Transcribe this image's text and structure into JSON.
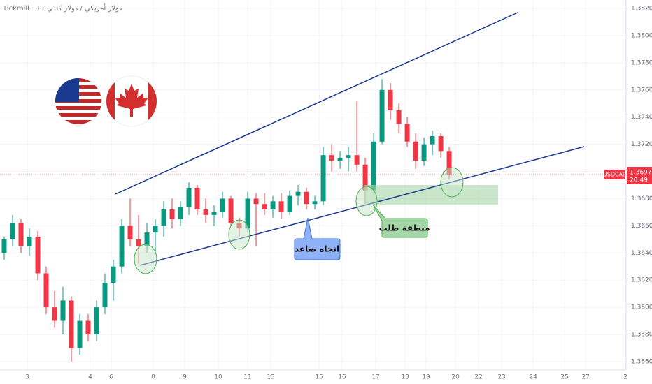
{
  "header": "Tickmill · 1 · دولار أمريكي / دولار كندي",
  "symbol": "USDCAD",
  "countdown": "20:49",
  "annotations": {
    "trend": "اتجاه صاعد",
    "demand_zone": "منطقة طلب"
  },
  "chart_data": {
    "type": "candlestick",
    "up_color": "#089981",
    "down_color": "#f23645",
    "grid": true,
    "xlim": [
      0,
      298.3
    ],
    "ylim": [
      1.35538,
      1.38262
    ],
    "xticks": [
      {
        "value": 13,
        "label": "3"
      },
      {
        "value": 43,
        "label": "4"
      },
      {
        "value": 53,
        "label": "6"
      },
      {
        "value": 73,
        "label": "8"
      },
      {
        "value": 88,
        "label": "9"
      },
      {
        "value": 104,
        "label": "10"
      },
      {
        "value": 118,
        "label": "11"
      },
      {
        "value": 129,
        "label": "13"
      },
      {
        "value": 152,
        "label": "15"
      },
      {
        "value": 163,
        "label": "16"
      },
      {
        "value": 179,
        "label": "17"
      },
      {
        "value": 193,
        "label": "18"
      },
      {
        "value": 203,
        "label": "19"
      },
      {
        "value": 217,
        "label": "20"
      },
      {
        "value": 228,
        "label": "22"
      },
      {
        "value": 239,
        "label": "23"
      },
      {
        "value": 254,
        "label": "24"
      },
      {
        "value": 269,
        "label": "25"
      },
      {
        "value": 279,
        "label": "27"
      },
      {
        "value": 298,
        "label": "2"
      }
    ],
    "yticks": [
      {
        "value": 1.356,
        "label": "1.35600"
      },
      {
        "value": 1.358,
        "label": "1.35800"
      },
      {
        "value": 1.36,
        "label": "1.36000"
      },
      {
        "value": 1.362,
        "label": "1.36200"
      },
      {
        "value": 1.364,
        "label": "1.36400"
      },
      {
        "value": 1.366,
        "label": "1.36600"
      },
      {
        "value": 1.368,
        "label": "1.36800"
      },
      {
        "value": 1.37,
        "label": "1.37000"
      },
      {
        "value": 1.372,
        "label": "1.37200"
      },
      {
        "value": 1.374,
        "label": "1.37400"
      },
      {
        "value": 1.376,
        "label": "1.37600"
      },
      {
        "value": 1.378,
        "label": "1.37800"
      },
      {
        "value": 1.38,
        "label": "1.38000"
      },
      {
        "value": 1.382,
        "label": "1.38200"
      }
    ],
    "x": [
      2,
      6,
      10,
      14,
      18,
      22,
      26,
      30,
      34,
      38,
      42,
      46,
      50,
      54,
      58,
      62,
      66,
      70,
      74,
      78,
      82,
      86,
      90,
      94,
      98,
      102,
      106,
      110,
      114,
      118,
      122,
      126,
      130,
      134,
      138,
      142,
      146,
      150,
      154,
      158,
      162,
      166,
      170,
      174,
      178,
      182,
      186,
      190,
      194,
      198,
      202,
      206,
      210,
      214
    ],
    "open": [
      1.364,
      1.365,
      1.3662,
      1.3645,
      1.3652,
      1.3625,
      1.36,
      1.359,
      1.3605,
      1.357,
      1.359,
      1.358,
      1.36,
      1.3618,
      1.363,
      1.366,
      1.365,
      1.3645,
      1.3655,
      1.366,
      1.3672,
      1.3665,
      1.3674,
      1.3688,
      1.3672,
      1.3668,
      1.367,
      1.368,
      1.3662,
      1.3658,
      1.368,
      1.3676,
      1.3672,
      1.3678,
      1.367,
      1.3682,
      1.3685,
      1.3676,
      1.3678,
      1.3712,
      1.3708,
      1.371,
      1.3712,
      1.3705,
      1.3686,
      1.3722,
      1.376,
      1.3745,
      1.3735,
      1.3722,
      1.3708,
      1.372,
      1.3726,
      1.3715
    ],
    "high": [
      1.3652,
      1.3668,
      1.3665,
      1.3658,
      1.3656,
      1.363,
      1.3612,
      1.3615,
      1.3608,
      1.3595,
      1.3595,
      1.3605,
      1.3625,
      1.3635,
      1.3665,
      1.368,
      1.3668,
      1.3662,
      1.3665,
      1.3678,
      1.368,
      1.3678,
      1.3692,
      1.369,
      1.368,
      1.3675,
      1.3685,
      1.3682,
      1.3666,
      1.3685,
      1.3684,
      1.3684,
      1.3682,
      1.3684,
      1.3686,
      1.369,
      1.3688,
      1.3682,
      1.3718,
      1.372,
      1.3715,
      1.3718,
      1.3752,
      1.371,
      1.3728,
      1.3768,
      1.3765,
      1.375,
      1.374,
      1.3728,
      1.3725,
      1.373,
      1.3728,
      1.3718
    ],
    "low": [
      1.3635,
      1.3645,
      1.364,
      1.3638,
      1.362,
      1.3595,
      1.3585,
      1.358,
      1.356,
      1.3565,
      1.3575,
      1.3575,
      1.3595,
      1.3605,
      1.3625,
      1.3645,
      1.3632,
      1.364,
      1.364,
      1.3652,
      1.3658,
      1.366,
      1.3668,
      1.3668,
      1.3662,
      1.366,
      1.3666,
      1.366,
      1.3652,
      1.3655,
      1.3645,
      1.3668,
      1.3666,
      1.3665,
      1.3668,
      1.3675,
      1.3672,
      1.3672,
      1.3675,
      1.37,
      1.3702,
      1.37,
      1.37,
      1.3676,
      1.3684,
      1.372,
      1.3738,
      1.3728,
      1.3718,
      1.3702,
      1.3704,
      1.3712,
      1.371,
      1.3694
    ],
    "close": [
      1.365,
      1.3662,
      1.3645,
      1.3652,
      1.3625,
      1.36,
      1.359,
      1.3605,
      1.357,
      1.359,
      1.358,
      1.36,
      1.3618,
      1.363,
      1.366,
      1.365,
      1.3645,
      1.3655,
      1.366,
      1.3672,
      1.3665,
      1.3674,
      1.3688,
      1.3672,
      1.3668,
      1.367,
      1.368,
      1.3662,
      1.3658,
      1.368,
      1.3676,
      1.3672,
      1.3678,
      1.367,
      1.3682,
      1.3685,
      1.3676,
      1.3678,
      1.3712,
      1.3708,
      1.371,
      1.3712,
      1.3705,
      1.3686,
      1.3722,
      1.376,
      1.3745,
      1.3735,
      1.3722,
      1.3708,
      1.372,
      1.3726,
      1.3715,
      1.36977
    ]
  }
}
